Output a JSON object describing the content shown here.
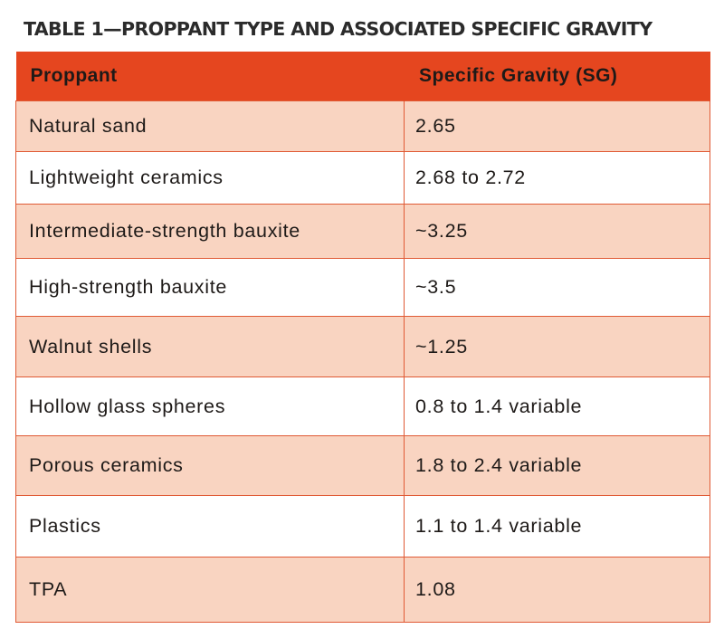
{
  "table": {
    "title": "TABLE 1—PROPPANT TYPE AND ASSOCIATED SPECIFIC GRAVITY",
    "headers": [
      "Proppant",
      "Specific Gravity (SG)"
    ],
    "rows": [
      {
        "proppant": "Natural sand",
        "sg": "2.65"
      },
      {
        "proppant": "Lightweight ceramics",
        "sg": "2.68 to 2.72"
      },
      {
        "proppant": "Intermediate-strength bauxite",
        "sg": "~3.25"
      },
      {
        "proppant": "High-strength bauxite",
        "sg": "~3.5"
      },
      {
        "proppant": "Walnut shells",
        "sg": "~1.25"
      },
      {
        "proppant": "Hollow glass spheres",
        "sg": "0.8 to 1.4 variable"
      },
      {
        "proppant": "Porous ceramics",
        "sg": "1.8 to 2.4 variable"
      },
      {
        "proppant": "Plastics",
        "sg": "1.1 to 1.4 variable"
      },
      {
        "proppant": "TPA",
        "sg": "1.08"
      }
    ],
    "colors": {
      "header_bg": "#e5461f",
      "stripe_bg": "#f9d4c1",
      "border": "#e05a35",
      "text": "#1e1a18"
    }
  }
}
